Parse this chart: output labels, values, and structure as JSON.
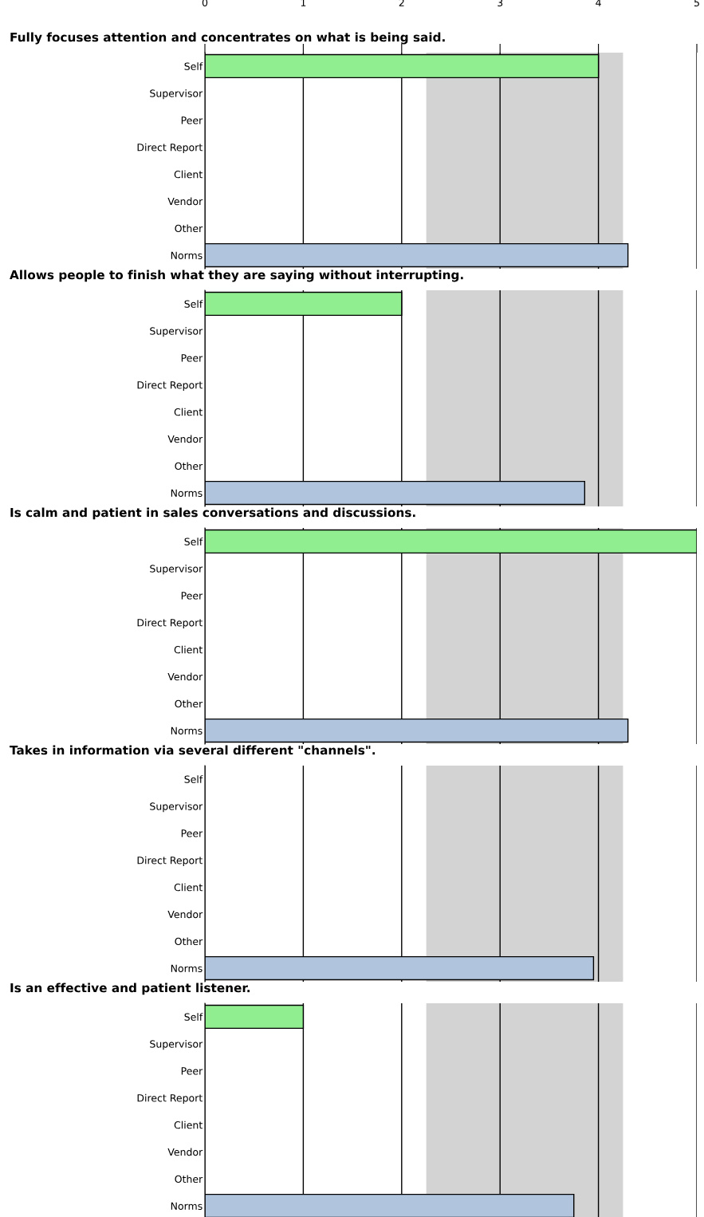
{
  "chart_data": [
    {
      "type": "bar",
      "orientation": "horizontal",
      "title": "Fully focuses attention and concentrates on what is being said.",
      "categories": [
        "Self",
        "Supervisor",
        "Peer",
        "Direct Report",
        "Client",
        "Vendor",
        "Other",
        "Norms"
      ],
      "values": [
        4,
        null,
        null,
        null,
        null,
        null,
        null,
        4.3
      ],
      "colors": [
        "#90ee90",
        null,
        null,
        null,
        null,
        null,
        null,
        "#b0c4de"
      ],
      "xlim": [
        0,
        5
      ],
      "xticks": [
        0,
        1,
        2,
        3,
        4,
        5
      ],
      "grid": "x",
      "bands": [
        {
          "axis": "x",
          "from": 2.25,
          "to": 4.25,
          "color": "#d3d3d3"
        }
      ]
    },
    {
      "type": "bar",
      "orientation": "horizontal",
      "title": "Allows people to finish what they are saying without interrupting.",
      "categories": [
        "Self",
        "Supervisor",
        "Peer",
        "Direct Report",
        "Client",
        "Vendor",
        "Other",
        "Norms"
      ],
      "values": [
        2,
        null,
        null,
        null,
        null,
        null,
        null,
        3.86
      ],
      "colors": [
        "#90ee90",
        null,
        null,
        null,
        null,
        null,
        null,
        "#b0c4de"
      ],
      "xlim": [
        0,
        5
      ],
      "xticks": [
        0,
        1,
        2,
        3,
        4,
        5
      ],
      "tick_labels": "y",
      "grid": "x",
      "bands": [
        {
          "axis": "x",
          "from": 2.25,
          "to": 4.25,
          "color": "#d3d3d3"
        }
      ]
    },
    {
      "type": "bar",
      "orientation": "horizontal",
      "title": "Is calm and patient in sales conversations and discussions.",
      "categories": [
        "Self",
        "Supervisor",
        "Peer",
        "Direct Report",
        "Client",
        "Vendor",
        "Other",
        "Norms"
      ],
      "values": [
        5,
        null,
        null,
        null,
        null,
        null,
        null,
        4.3
      ],
      "colors": [
        "#90ee90",
        null,
        null,
        null,
        null,
        null,
        null,
        "#b0c4de"
      ],
      "xlim": [
        0,
        5
      ],
      "xticks": [
        0,
        1,
        2,
        3,
        4,
        5
      ],
      "tick_labels": "y",
      "grid": "x",
      "bands": [
        {
          "axis": "x",
          "from": 2.25,
          "to": 4.25,
          "color": "#d3d3d3"
        }
      ]
    },
    {
      "type": "bar",
      "orientation": "horizontal",
      "title": "Takes in information via several different \"channels\".",
      "categories": [
        "Self",
        "Supervisor",
        "Peer",
        "Direct Report",
        "Client",
        "Vendor",
        "Other",
        "Norms"
      ],
      "values": [
        null,
        null,
        null,
        null,
        null,
        null,
        null,
        3.95
      ],
      "colors": [
        null,
        null,
        null,
        null,
        null,
        null,
        null,
        "#b0c4de"
      ],
      "xlim": [
        0,
        5
      ],
      "xticks": [
        0,
        1,
        2,
        3,
        4,
        5
      ],
      "tick_labels": "y",
      "grid": "x",
      "bands": [
        {
          "axis": "x",
          "from": 2.25,
          "to": 4.25,
          "color": "#d3d3d3"
        }
      ]
    },
    {
      "type": "bar",
      "orientation": "horizontal",
      "title": "Is an effective and patient listener.",
      "categories": [
        "Self",
        "Supervisor",
        "Peer",
        "Direct Report",
        "Client",
        "Vendor",
        "Other",
        "Norms"
      ],
      "values": [
        1,
        null,
        null,
        null,
        null,
        null,
        null,
        3.75
      ],
      "colors": [
        "#90ee90",
        null,
        null,
        null,
        null,
        null,
        null,
        "#b0c4de"
      ],
      "xlim": [
        0,
        5
      ],
      "xticks": [
        0,
        1,
        2,
        3,
        4,
        5
      ],
      "tick_labels": "y",
      "grid": "x",
      "bands": [
        {
          "axis": "x",
          "from": 2.25,
          "to": 4.25,
          "color": "#d3d3d3"
        }
      ]
    }
  ]
}
